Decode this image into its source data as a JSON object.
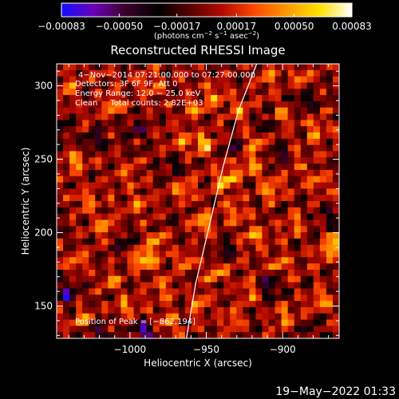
{
  "chart_data": {
    "type": "heatmap",
    "title": "Reconstructed RHESSI Image",
    "xlabel": "Heliocentric X (arcsec)",
    "ylabel": "Heliocentric Y (arcsec)",
    "xlim": [
      -1048,
      -863
    ],
    "ylim": [
      128,
      315
    ],
    "x_ticks": [
      {
        "value": -1000,
        "label": "−1000"
      },
      {
        "value": -950,
        "label": "−950"
      },
      {
        "value": -900,
        "label": "−900"
      }
    ],
    "y_ticks": [
      {
        "value": 150,
        "label": "150"
      },
      {
        "value": 200,
        "label": "200"
      },
      {
        "value": 250,
        "label": "250"
      },
      {
        "value": 300,
        "label": "300"
      }
    ],
    "colorbar": {
      "range": [
        -0.00083,
        0.00083
      ],
      "ticks": [
        {
          "value": -0.00083,
          "label": "−0.00083"
        },
        {
          "value": -0.0005,
          "label": "−0.00050"
        },
        {
          "value": -0.00017,
          "label": "−0.00017"
        },
        {
          "value": 0.00017,
          "label": "0.00017"
        },
        {
          "value": 0.0005,
          "label": "0.00050"
        },
        {
          "value": 0.00083,
          "label": "0.00083"
        }
      ],
      "unit": {
        "pre": "(photons cm",
        "sup1": "−2",
        "mid1": " s",
        "sup2": "−1",
        "mid2": " asec",
        "sup3": "−2",
        "post": ")"
      },
      "stops": [
        "#1010ff",
        "#6a00b8",
        "#3b0028",
        "#000000",
        "#5a0000",
        "#b40a00",
        "#ff4a00",
        "#ff9a00",
        "#ffe000",
        "#ffffff"
      ]
    },
    "info_lines": [
      "4−Nov−2014 07:21:00.000 to 07:27:00.000",
      "Detectors: 3F 6F 9F, Att 0",
      "Energy Range: 12.0 − 25.0 keV",
      "Clean     Total counts: 2.82E+03"
    ],
    "peak_label": "Position of Peak = [−862,194]",
    "peak": {
      "x": -862,
      "y": 194
    },
    "limb_line": [
      {
        "x": -963,
        "y": 128
      },
      {
        "x": -957,
        "y": 165
      },
      {
        "x": -948,
        "y": 205
      },
      {
        "x": -939,
        "y": 245
      },
      {
        "x": -929,
        "y": 283
      },
      {
        "x": -917,
        "y": 315
      }
    ],
    "hot_spots": [
      {
        "x": -1035,
        "y": 248,
        "i": 0.55
      },
      {
        "x": -1011,
        "y": 287,
        "i": 0.5
      },
      {
        "x": -986,
        "y": 302,
        "i": 0.45
      },
      {
        "x": -1028,
        "y": 222,
        "i": 0.45
      },
      {
        "x": -1003,
        "y": 239,
        "i": 0.4
      },
      {
        "x": -995,
        "y": 219,
        "i": 0.45
      },
      {
        "x": -1017,
        "y": 204,
        "i": 0.55
      },
      {
        "x": -982,
        "y": 193,
        "i": 0.55
      },
      {
        "x": -991,
        "y": 182,
        "i": 0.85
      },
      {
        "x": -1013,
        "y": 168,
        "i": 0.5
      },
      {
        "x": -1035,
        "y": 180,
        "i": 0.45
      },
      {
        "x": -978,
        "y": 163,
        "i": 0.5
      },
      {
        "x": -1002,
        "y": 149,
        "i": 0.45
      },
      {
        "x": -1031,
        "y": 141,
        "i": 0.45
      },
      {
        "x": -975,
        "y": 138,
        "i": 0.45
      },
      {
        "x": -954,
        "y": 152,
        "i": 0.5
      },
      {
        "x": -963,
        "y": 181,
        "i": 0.5
      },
      {
        "x": -953,
        "y": 206,
        "i": 0.55
      },
      {
        "x": -965,
        "y": 229,
        "i": 0.5
      },
      {
        "x": -951,
        "y": 261,
        "i": 0.7
      },
      {
        "x": -957,
        "y": 285,
        "i": 0.55
      },
      {
        "x": -966,
        "y": 263,
        "i": 0.4
      },
      {
        "x": -937,
        "y": 236,
        "i": 0.85
      },
      {
        "x": -931,
        "y": 214,
        "i": 0.55
      },
      {
        "x": -921,
        "y": 245,
        "i": 0.6
      },
      {
        "x": -908,
        "y": 229,
        "i": 0.55
      },
      {
        "x": -917,
        "y": 262,
        "i": 0.45
      },
      {
        "x": -944,
        "y": 293,
        "i": 0.55
      },
      {
        "x": -928,
        "y": 283,
        "i": 0.45
      },
      {
        "x": -899,
        "y": 279,
        "i": 0.45
      },
      {
        "x": -888,
        "y": 306,
        "i": 0.5
      },
      {
        "x": -879,
        "y": 269,
        "i": 0.45
      },
      {
        "x": -893,
        "y": 248,
        "i": 0.4
      },
      {
        "x": -879,
        "y": 236,
        "i": 0.45
      },
      {
        "x": -918,
        "y": 197,
        "i": 0.55
      },
      {
        "x": -902,
        "y": 180,
        "i": 0.5
      },
      {
        "x": -892,
        "y": 205,
        "i": 0.45
      },
      {
        "x": -872,
        "y": 186,
        "i": 0.5
      },
      {
        "x": -862,
        "y": 194,
        "i": 1.0
      },
      {
        "x": -921,
        "y": 160,
        "i": 0.5
      },
      {
        "x": -932,
        "y": 141,
        "i": 0.45
      },
      {
        "x": -898,
        "y": 143,
        "i": 0.5
      },
      {
        "x": -875,
        "y": 154,
        "i": 0.55
      },
      {
        "x": -944,
        "y": 172,
        "i": 0.45
      },
      {
        "x": -1041,
        "y": 298,
        "i": 0.45
      },
      {
        "x": -909,
        "y": 308,
        "i": 0.4
      }
    ],
    "cold_spots": [
      {
        "x": -1041,
        "y": 158,
        "i": 0.7
      },
      {
        "x": -1020,
        "y": 131,
        "i": 0.55
      },
      {
        "x": -991,
        "y": 133,
        "i": 0.75
      },
      {
        "x": -1023,
        "y": 262,
        "i": 0.55
      },
      {
        "x": -996,
        "y": 270,
        "i": 0.45
      },
      {
        "x": -1003,
        "y": 195,
        "i": 0.4
      },
      {
        "x": -900,
        "y": 252,
        "i": 0.6
      },
      {
        "x": -912,
        "y": 272,
        "i": 0.5
      },
      {
        "x": -932,
        "y": 258,
        "i": 0.45
      },
      {
        "x": -909,
        "y": 164,
        "i": 0.55
      },
      {
        "x": -937,
        "y": 187,
        "i": 0.4
      },
      {
        "x": -884,
        "y": 291,
        "i": 0.45
      },
      {
        "x": -869,
        "y": 211,
        "i": 0.45
      },
      {
        "x": -972,
        "y": 245,
        "i": 0.35
      },
      {
        "x": -1044,
        "y": 272,
        "i": 0.35
      },
      {
        "x": -881,
        "y": 133,
        "i": 0.4
      }
    ]
  },
  "footer": {
    "timestamp": "19−May−2022 01:33"
  },
  "colors": {
    "background": "#000000",
    "axis": "#ffffff",
    "limb_line": "#ffffff"
  }
}
